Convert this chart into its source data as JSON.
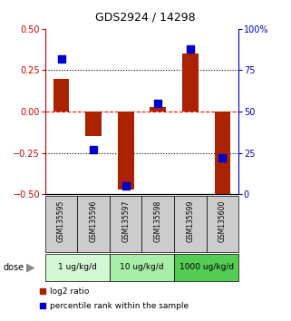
{
  "title": "GDS2924 / 14298",
  "samples": [
    "GSM135595",
    "GSM135596",
    "GSM135597",
    "GSM135598",
    "GSM135599",
    "GSM135600"
  ],
  "log2_ratio": [
    0.2,
    -0.15,
    -0.47,
    0.03,
    0.35,
    -0.5
  ],
  "percentile": [
    82,
    27,
    5,
    55,
    88,
    22
  ],
  "ylim_left": [
    -0.5,
    0.5
  ],
  "ylim_right": [
    0,
    100
  ],
  "yticks_left": [
    -0.5,
    -0.25,
    0.0,
    0.25,
    0.5
  ],
  "yticks_right": [
    0,
    25,
    50,
    75,
    100
  ],
  "ytick_labels_right": [
    "0",
    "25",
    "50",
    "75",
    "100%"
  ],
  "hlines_dotted": [
    -0.25,
    0.25
  ],
  "hline_dashed_red": 0.0,
  "dose_groups": [
    {
      "label": "1 ug/kg/d",
      "samples": [
        0,
        1
      ],
      "color": "#d4f7d4"
    },
    {
      "label": "10 ug/kg/d",
      "samples": [
        2,
        3
      ],
      "color": "#a8eda8"
    },
    {
      "label": "1000 ug/kg/d",
      "samples": [
        4,
        5
      ],
      "color": "#55cc55"
    }
  ],
  "bar_color": "#aa2200",
  "dot_color": "#0000cc",
  "bar_width": 0.5,
  "dot_size": 28,
  "left_axis_color": "#cc0000",
  "right_axis_color": "#0000cc",
  "bg_plot": "#ffffff",
  "bg_sample_box": "#cccccc",
  "legend_items": [
    {
      "label": "log2 ratio",
      "color": "#aa2200"
    },
    {
      "label": "percentile rank within the sample",
      "color": "#0000cc"
    }
  ]
}
